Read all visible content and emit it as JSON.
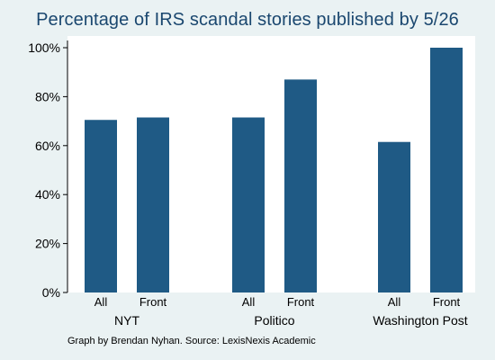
{
  "chart_data": {
    "type": "bar",
    "title": "Percentage of IRS scandal stories published by 5/26",
    "note": "Graph by Brendan Nyhan. Source: LexisNexis Academic",
    "groups": [
      "NYT",
      "Politico",
      "Washington Post"
    ],
    "subcategories": [
      "All",
      "Front"
    ],
    "values": [
      [
        70.5,
        71.5
      ],
      [
        71.5,
        87
      ],
      [
        61.5,
        100
      ]
    ],
    "ylim": [
      0,
      100
    ],
    "yticks": [
      0,
      20,
      40,
      60,
      80,
      100
    ],
    "ytick_labels": [
      "0%",
      "20%",
      "40%",
      "60%",
      "80%",
      "100%"
    ],
    "grid": false,
    "legend": "none",
    "colors": {
      "bar": "#1f5a85",
      "title": "#1a476f",
      "plot_background": "#ffffff",
      "outer_background": "#eaf2f3",
      "axis": "#000000"
    }
  }
}
